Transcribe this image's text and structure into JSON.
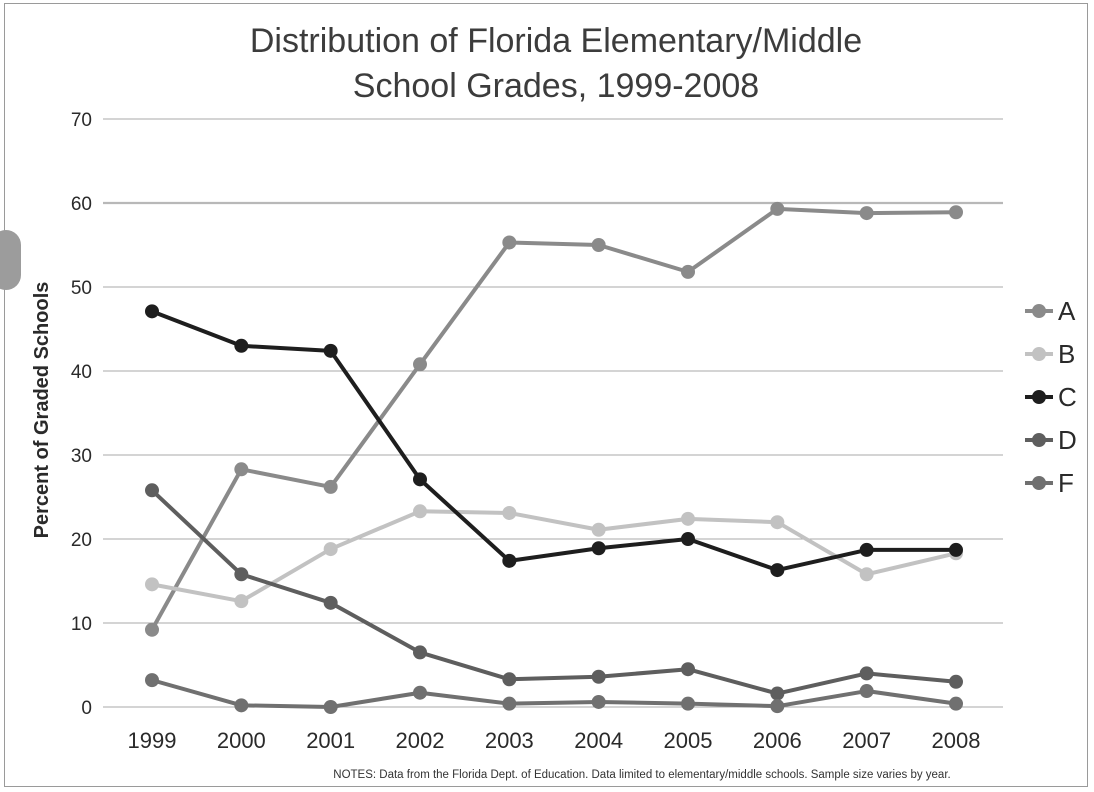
{
  "chart_data": {
    "type": "line",
    "title": "Distribution of Florida Elementary/Middle School Grades, 1999-2008",
    "title_lines": [
      "Distribution of Florida Elementary/Middle",
      "School Grades, 1999-2008"
    ],
    "xlabel": "",
    "ylabel": "Percent of Graded Schools",
    "categories": [
      "1999",
      "2000",
      "2001",
      "2002",
      "2003",
      "2004",
      "2005",
      "2006",
      "2007",
      "2008"
    ],
    "ylim": [
      0,
      70
    ],
    "yticks": [
      0,
      10,
      20,
      30,
      40,
      50,
      60,
      70
    ],
    "grid": true,
    "legend_position": "right",
    "series": [
      {
        "name": "A",
        "color": "#8a8a8a",
        "values": [
          9.2,
          28.3,
          26.2,
          40.8,
          55.3,
          55.0,
          51.8,
          59.3,
          58.8,
          58.9
        ]
      },
      {
        "name": "B",
        "color": "#c2c2c2",
        "values": [
          14.6,
          12.6,
          18.8,
          23.3,
          23.1,
          21.1,
          22.4,
          22.0,
          15.8,
          18.3
        ]
      },
      {
        "name": "C",
        "color": "#1e1e1e",
        "values": [
          47.1,
          43.0,
          42.4,
          27.1,
          17.4,
          18.9,
          20.0,
          16.3,
          18.7,
          18.7
        ]
      },
      {
        "name": "D",
        "color": "#5e5e5e",
        "values": [
          25.8,
          15.8,
          12.4,
          6.5,
          3.3,
          3.6,
          4.5,
          1.6,
          4.0,
          3.0
        ]
      },
      {
        "name": "F",
        "color": "#707070",
        "values": [
          3.2,
          0.2,
          0.0,
          1.7,
          0.4,
          0.6,
          0.4,
          0.1,
          1.9,
          0.4
        ]
      }
    ],
    "notes": "NOTES: Data from the Florida Dept. of Education. Data limited to elementary/middle schools. Sample size varies by year."
  }
}
